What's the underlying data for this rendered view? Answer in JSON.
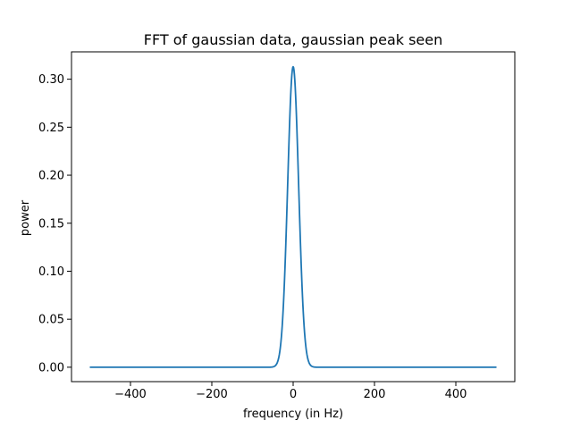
{
  "chart_data": {
    "type": "line",
    "title": "FFT of gaussian data, gaussian peak seen",
    "xlabel": "frequency (in Hz)",
    "ylabel": "power",
    "xlim": [
      -545,
      545
    ],
    "ylim": [
      -0.015,
      0.3285
    ],
    "xticks": [
      -400,
      -200,
      0,
      200,
      400
    ],
    "xtick_labels": [
      "−400",
      "−200",
      "0",
      "200",
      "400"
    ],
    "yticks": [
      0.0,
      0.05,
      0.1,
      0.15,
      0.2,
      0.25,
      0.3
    ],
    "ytick_labels": [
      "0.00",
      "0.05",
      "0.10",
      "0.15",
      "0.20",
      "0.25",
      "0.30"
    ],
    "grid": false,
    "series": [
      {
        "color": "#1f77b4",
        "description_points": {
          "x": [
            -500,
            -60,
            -50,
            -40,
            -35,
            -30,
            -25,
            -20,
            -15,
            -10,
            -5,
            -2,
            0,
            2,
            5,
            10,
            15,
            20,
            25,
            30,
            35,
            40,
            50,
            60,
            500
          ],
          "y": [
            0.0,
            0.0,
            0.0003,
            0.003,
            0.009,
            0.025,
            0.055,
            0.105,
            0.165,
            0.225,
            0.285,
            0.31,
            0.313,
            0.31,
            0.285,
            0.225,
            0.165,
            0.105,
            0.055,
            0.025,
            0.009,
            0.003,
            0.0003,
            0.0,
            0.0
          ]
        }
      }
    ]
  }
}
